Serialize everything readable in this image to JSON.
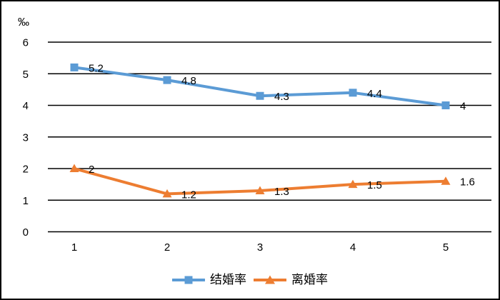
{
  "figure": {
    "background": "#ffffff",
    "border_color": "#000000"
  },
  "chart_data": {
    "type": "line",
    "title": "",
    "ylabel": "‰",
    "xlabel": "",
    "categories": [
      "1",
      "2",
      "3",
      "4",
      "5"
    ],
    "series": [
      {
        "name": "结婚率",
        "values": [
          5.2,
          4.8,
          4.3,
          4.4,
          4
        ],
        "labels": [
          "5.2",
          "4.8",
          "4.3",
          "4.4",
          "4"
        ],
        "color": "#5B9BD5",
        "marker": "square"
      },
      {
        "name": "离婚率",
        "values": [
          2,
          1.2,
          1.3,
          1.5,
          1.6
        ],
        "labels": [
          "2",
          "1.2",
          "1.3",
          "1.5",
          "1.6"
        ],
        "color": "#ED7D31",
        "marker": "triangle"
      }
    ],
    "yticks": [
      "0",
      "1",
      "2",
      "3",
      "4",
      "5",
      "6"
    ],
    "ylim": [
      0,
      6
    ],
    "grid": true,
    "gridline_color": "#000000",
    "legend_position": "bottom"
  }
}
